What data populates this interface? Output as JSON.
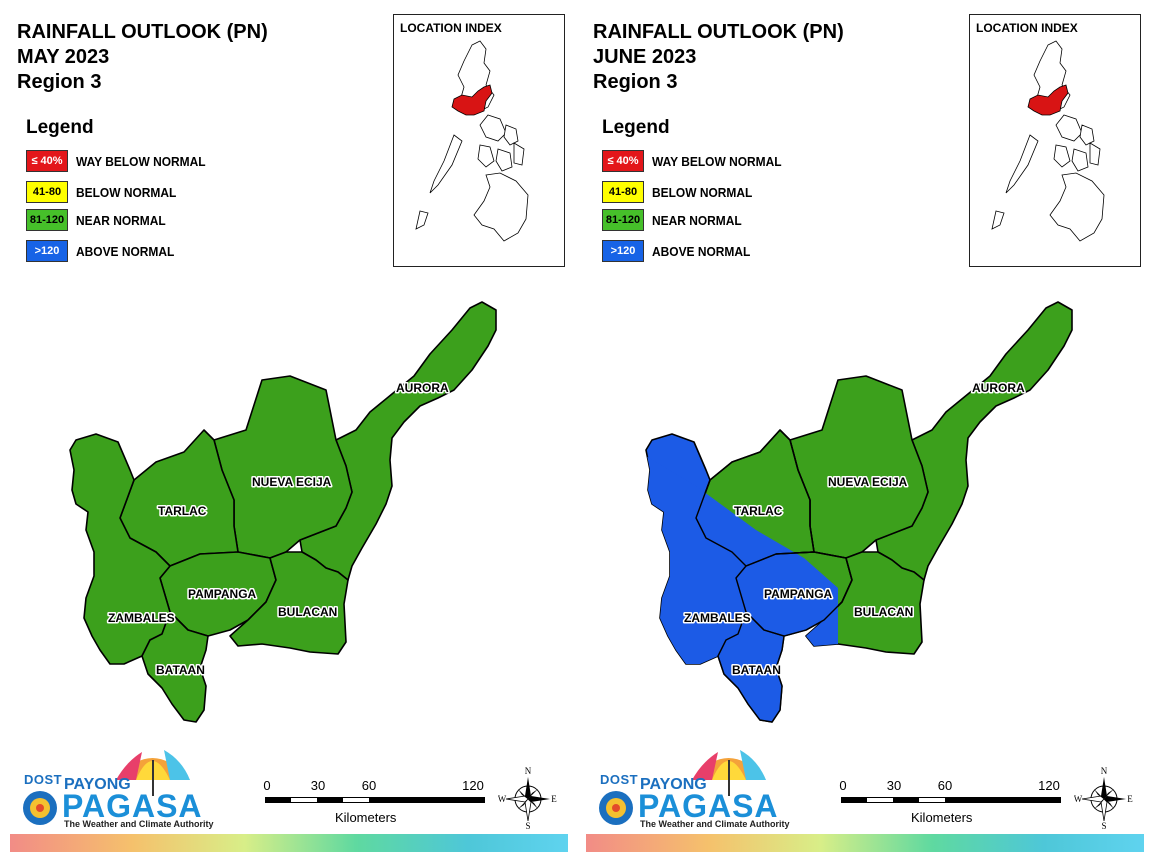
{
  "panels": [
    {
      "title": [
        "RAINFALL OUTLOOK (PN)",
        "MAY 2023",
        "Region 3"
      ],
      "inset_title": "LOCATION INDEX",
      "legend_title": "Legend",
      "provinces": {
        "aurora": {
          "label": "AURORA",
          "category": "near"
        },
        "nueva_ecija": {
          "label": "NUEVA ECIJA",
          "category": "near"
        },
        "tarlac": {
          "label": "TARLAC",
          "category": "near"
        },
        "pampanga": {
          "label": "PAMPANGA",
          "category": "near"
        },
        "bulacan": {
          "label": "BULACAN",
          "category": "near"
        },
        "zambales": {
          "label": "ZAMBALES",
          "category": "near"
        },
        "bataan": {
          "label": "BATAAN",
          "category": "near"
        }
      }
    },
    {
      "title": [
        "RAINFALL OUTLOOK (PN)",
        "JUNE 2023",
        "Region 3"
      ],
      "inset_title": "LOCATION INDEX",
      "legend_title": "Legend",
      "provinces": {
        "aurora": {
          "label": "AURORA",
          "category": "near"
        },
        "nueva_ecija": {
          "label": "NUEVA ECIJA",
          "category": "near"
        },
        "tarlac": {
          "label": "TARLAC",
          "category": "near"
        },
        "pampanga": {
          "label": "PAMPANGA",
          "category": "near"
        },
        "bulacan": {
          "label": "BULACAN",
          "category": "near"
        },
        "zambales": {
          "label": "ZAMBALES",
          "category": "above"
        },
        "bataan": {
          "label": "BATAAN",
          "category": "above"
        }
      },
      "above_normal_overlay": true
    }
  ],
  "legend": [
    {
      "swatch": "≤ 40%",
      "label": "WAY BELOW NORMAL",
      "color": "#e3161a",
      "text_color": "#ffffff"
    },
    {
      "swatch": "41-80",
      "label": "BELOW NORMAL",
      "color": "#ffff00",
      "text_color": "#000000"
    },
    {
      "swatch": "81-120",
      "label": "NEAR NORMAL",
      "color": "#46c02a",
      "text_color": "#000000"
    },
    {
      "swatch": ">120",
      "label": "ABOVE NORMAL",
      "color": "#1763e6",
      "text_color": "#ffffff"
    }
  ],
  "map_colors": {
    "near": "#3ca01c",
    "above": "#1c5be6",
    "highlight": "#d81414"
  },
  "scale": {
    "ticks": [
      "0",
      "30",
      "60",
      "120"
    ],
    "unit": "Kilometers"
  },
  "compass": {
    "n": "N",
    "s": "S",
    "e": "E",
    "w": "W"
  },
  "logo": {
    "dost": "DOST",
    "payong": "PAYONG",
    "pagasa": "PAGASA",
    "tagline": "The Weather and Climate Authority"
  }
}
